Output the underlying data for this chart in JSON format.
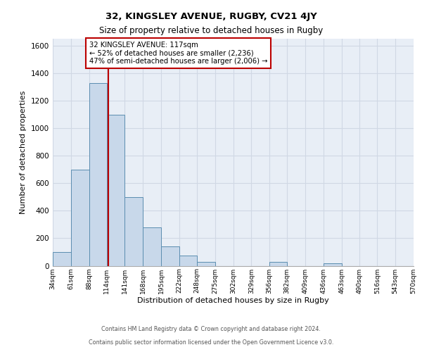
{
  "title_line1": "32, KINGSLEY AVENUE, RUGBY, CV21 4JY",
  "title_line2": "Size of property relative to detached houses in Rugby",
  "xlabel": "Distribution of detached houses by size in Rugby",
  "ylabel": "Number of detached properties",
  "bin_edges": [
    34,
    61,
    88,
    114,
    141,
    168,
    195,
    222,
    248,
    275,
    302,
    329,
    356,
    382,
    409,
    436,
    463,
    490,
    516,
    543,
    570
  ],
  "bar_heights": [
    100,
    700,
    1330,
    1100,
    500,
    280,
    140,
    75,
    30,
    0,
    0,
    0,
    30,
    0,
    0,
    20,
    0,
    0,
    0,
    0
  ],
  "bar_facecolor": "#c8d8ea",
  "bar_edgecolor": "#5b8db0",
  "grid_color": "#d0d8e4",
  "background_color": "#e8eef6",
  "property_size": 117,
  "vline_color": "#bb0000",
  "annotation_text": "32 KINGSLEY AVENUE: 117sqm\n← 52% of detached houses are smaller (2,236)\n47% of semi-detached houses are larger (2,006) →",
  "annotation_boxcolor": "white",
  "annotation_edgecolor": "#bb0000",
  "ylim": [
    0,
    1650
  ],
  "yticks": [
    0,
    200,
    400,
    600,
    800,
    1000,
    1200,
    1400,
    1600
  ],
  "footer_line1": "Contains HM Land Registry data © Crown copyright and database right 2024.",
  "footer_line2": "Contains public sector information licensed under the Open Government Licence v3.0."
}
